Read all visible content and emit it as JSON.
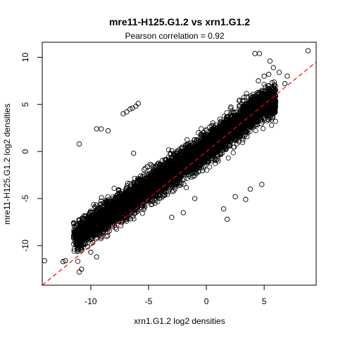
{
  "chart_data": {
    "type": "scatter",
    "title": "mre11-H125.G1.2 vs xrn1.G1.2",
    "subtitle": "Pearson correlation =  0.92",
    "xlabel": "xrn1.G1.2 log2 densities",
    "ylabel": "mre11-H125.G1.2 log2 densities",
    "xlim": [
      -14.2,
      9.5
    ],
    "ylim": [
      -14.2,
      11.6
    ],
    "xticks": [
      -10,
      -5,
      0,
      5
    ],
    "yticks": [
      -10,
      -5,
      0,
      5,
      10
    ],
    "grid": false,
    "marker": "open-circle",
    "point_color": "#000000",
    "fit_line": {
      "color": "#ff0000",
      "style": "dashed",
      "slope": 1.0,
      "intercept": 0.0
    },
    "points": [
      [
        8.8,
        10.7
      ],
      [
        4.6,
        10.4
      ],
      [
        4.2,
        10.4
      ],
      [
        5.5,
        9.6
      ],
      [
        5.8,
        8.9
      ],
      [
        5.4,
        8.2
      ],
      [
        6.3,
        8.4
      ],
      [
        5.0,
        8.0
      ],
      [
        4.5,
        7.5
      ],
      [
        7.0,
        8.0
      ],
      [
        5.9,
        7.1
      ],
      [
        6.8,
        7.2
      ],
      [
        -5.9,
        5.1
      ],
      [
        -6.1,
        4.8
      ],
      [
        -6.4,
        4.6
      ],
      [
        -6.6,
        4.5
      ],
      [
        -6.9,
        4.2
      ],
      [
        -7.2,
        4.0
      ],
      [
        -8.5,
        2.2
      ],
      [
        -9.1,
        2.4
      ],
      [
        -9.5,
        2.4
      ],
      [
        -11.0,
        0.8
      ],
      [
        -6.3,
        -0.2
      ],
      [
        -5.1,
        -1.6
      ],
      [
        -3.6,
        -0.9
      ],
      [
        -14.0,
        -11.6
      ],
      [
        -12.2,
        -11.6
      ],
      [
        -12.4,
        -11.7
      ],
      [
        -11.0,
        -12.8
      ],
      [
        -10.8,
        -12.5
      ],
      [
        -9.5,
        -11.2
      ],
      [
        -10.0,
        -10.7
      ],
      [
        1.5,
        -6.1
      ],
      [
        1.8,
        -7.2
      ],
      [
        3.4,
        -5.1
      ],
      [
        -1.0,
        -5.0
      ],
      [
        3.8,
        -4.0
      ],
      [
        4.8,
        -3.5
      ],
      [
        2.5,
        -4.8
      ],
      [
        -3.0,
        -7.0
      ],
      [
        -2.0,
        -6.5
      ]
    ],
    "dense_band": {
      "description_samples": 6000,
      "spine": [
        [
          -11.2,
          -9.0
        ],
        [
          -8.0,
          -6.3
        ],
        [
          -5.0,
          -3.8
        ],
        [
          -2.0,
          -1.3
        ],
        [
          1.0,
          1.3
        ],
        [
          3.0,
          3.2
        ],
        [
          5.0,
          5.2
        ]
      ],
      "spread_y": 1.7
    }
  }
}
